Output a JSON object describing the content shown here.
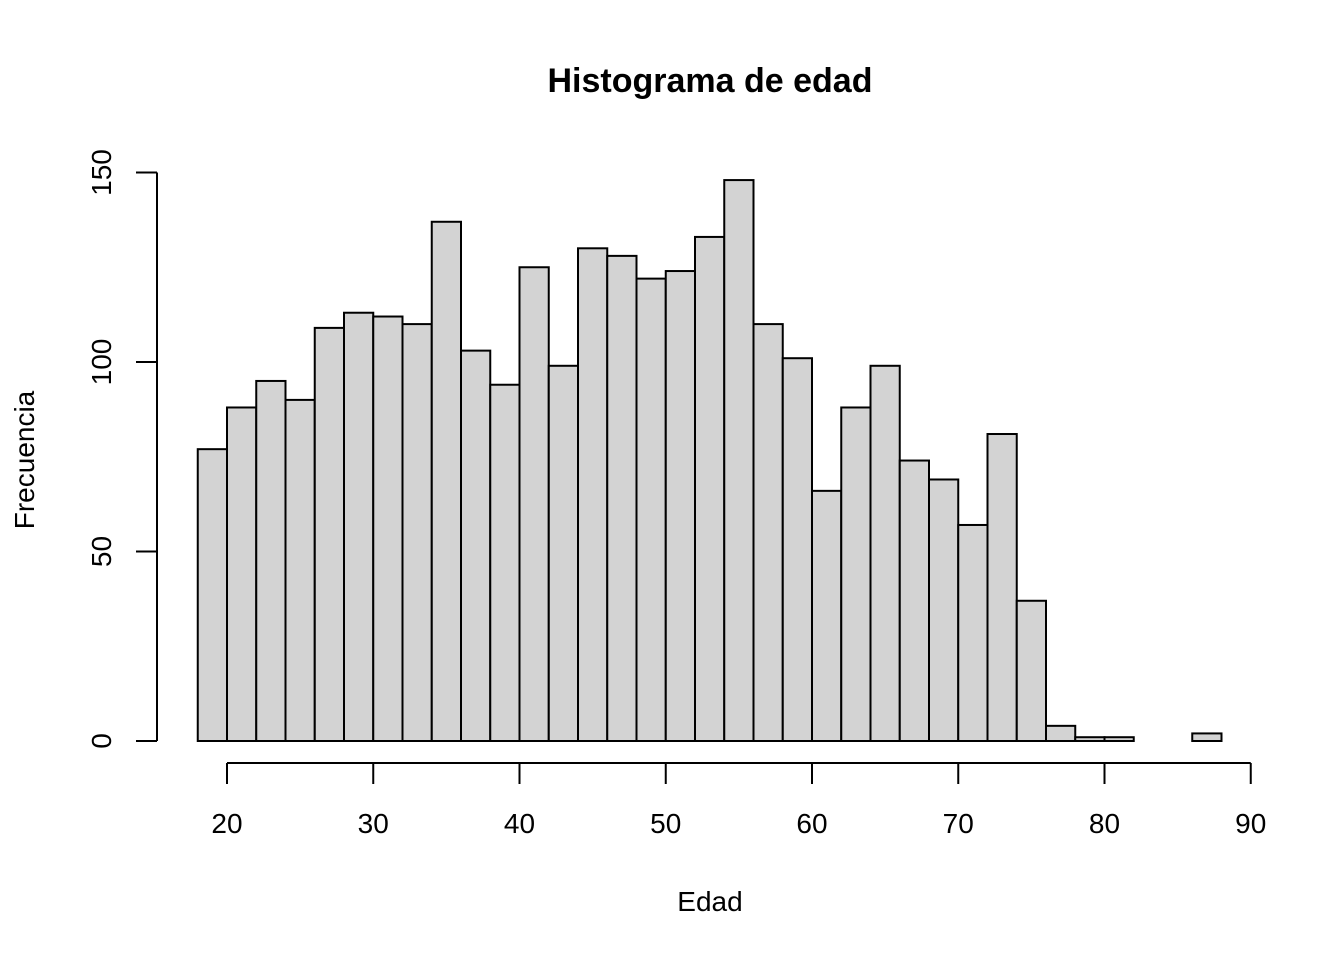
{
  "chart_data": {
    "type": "bar",
    "title": "Histograma de edad",
    "xlabel": "Edad",
    "ylabel": "Frecuencia",
    "bin_edges": [
      18,
      20,
      22,
      24,
      26,
      28,
      30,
      32,
      34,
      36,
      38,
      40,
      42,
      44,
      46,
      48,
      50,
      52,
      54,
      56,
      58,
      60,
      62,
      64,
      66,
      68,
      70,
      72,
      74,
      76,
      78,
      80,
      82,
      84,
      86,
      88
    ],
    "values": [
      77,
      88,
      95,
      90,
      109,
      113,
      112,
      110,
      137,
      103,
      94,
      125,
      99,
      130,
      128,
      122,
      124,
      133,
      148,
      110,
      101,
      66,
      88,
      99,
      74,
      69,
      57,
      81,
      37,
      4,
      1,
      1,
      0,
      0,
      2
    ],
    "xlim": [
      18,
      90
    ],
    "ylim": [
      0,
      150
    ],
    "x_ticks": [
      20,
      30,
      40,
      50,
      60,
      70,
      80,
      90
    ],
    "y_ticks": [
      0,
      50,
      100,
      150
    ],
    "bar_color": "#d3d3d3",
    "grid": false
  }
}
